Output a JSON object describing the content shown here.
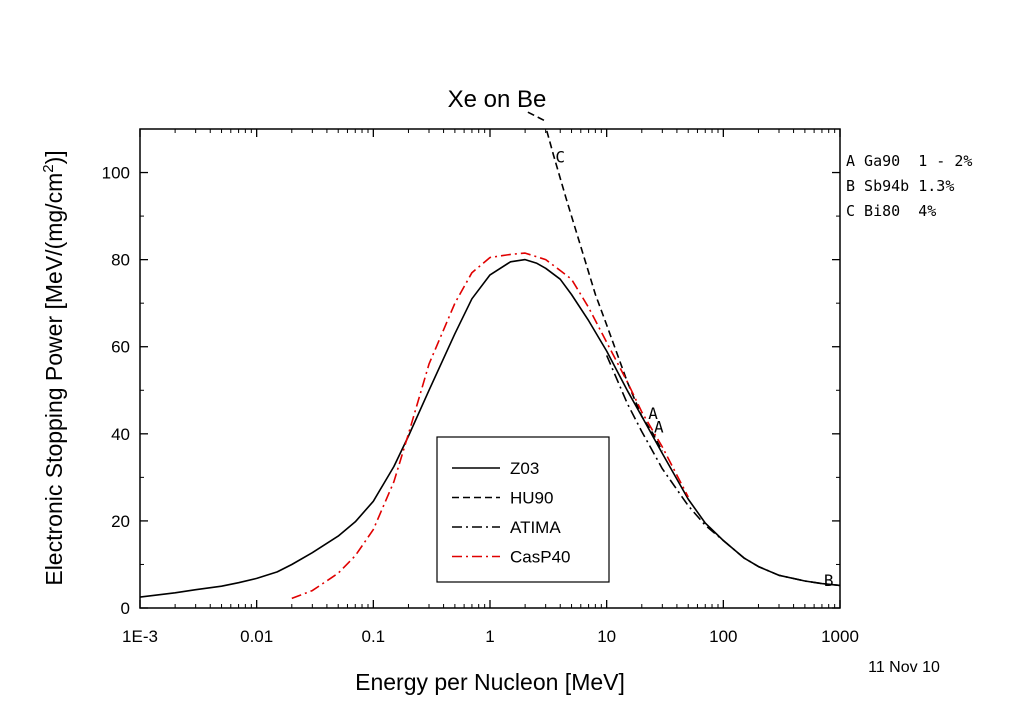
{
  "chart_data": {
    "type": "line",
    "title": "Xe on Be",
    "xlabel": "Energy per Nucleon [MeV]",
    "ylabel": "Electronic Stopping Power [MeV/(mg/cm",
    "ylabel_sup": "2",
    "ylabel_end": ")]",
    "x_scale": "log",
    "xlim": [
      0.001,
      1000
    ],
    "ylim": [
      0,
      110
    ],
    "x_ticks": [
      0.001,
      0.01,
      0.1,
      1,
      10,
      100,
      1000
    ],
    "x_tick_labels": [
      "1E-3",
      "0.01",
      "0.1",
      "1",
      "10",
      "100",
      "1000"
    ],
    "y_ticks": [
      0,
      20,
      40,
      60,
      80,
      100
    ],
    "y_tick_labels": [
      "0",
      "20",
      "40",
      "60",
      "80",
      "100"
    ],
    "grid": false,
    "legend_position": "lower-center",
    "series": [
      {
        "name": "Z03",
        "color": "#000000",
        "dash": "solid",
        "x": [
          0.001,
          0.002,
          0.003,
          0.005,
          0.007,
          0.01,
          0.015,
          0.02,
          0.03,
          0.05,
          0.07,
          0.1,
          0.15,
          0.2,
          0.3,
          0.5,
          0.7,
          1,
          1.5,
          2,
          2.5,
          3,
          4,
          5,
          7,
          10,
          15,
          20,
          30,
          50,
          70,
          100,
          150,
          200,
          300,
          500,
          700,
          1000
        ],
        "y": [
          2.5,
          3.5,
          4.2,
          5.0,
          5.8,
          6.8,
          8.3,
          10.0,
          12.7,
          16.5,
          19.8,
          24.5,
          32.5,
          39.5,
          50.0,
          63.0,
          71.0,
          76.5,
          79.5,
          80.0,
          79.2,
          78.0,
          75.5,
          72.0,
          66.0,
          59.0,
          50.0,
          44.0,
          35.5,
          25.0,
          19.5,
          15.5,
          11.5,
          9.5,
          7.5,
          6.2,
          5.6,
          5.2
        ]
      },
      {
        "name": "HU90",
        "color": "#000000",
        "dash": "dashed",
        "x": [
          2.9,
          3.5,
          4.5,
          6,
          8,
          10,
          15,
          20,
          25,
          30
        ],
        "y": [
          112,
          104,
          94,
          83,
          72,
          65,
          52,
          44,
          40,
          36
        ]
      },
      {
        "name": "ATIMA",
        "color": "#000000",
        "dash": "dashdot",
        "x": [
          10,
          15,
          20,
          30,
          50,
          70,
          100,
          150,
          200,
          300,
          500,
          700,
          1000
        ],
        "y": [
          58,
          47,
          40.5,
          32,
          23.5,
          19,
          15.5,
          11.5,
          9.5,
          7.5,
          6.2,
          5.6,
          5.2
        ]
      },
      {
        "name": "CasP40",
        "color": "#e00000",
        "dash": "dashdot",
        "x": [
          0.02,
          0.03,
          0.05,
          0.07,
          0.1,
          0.15,
          0.2,
          0.3,
          0.5,
          0.7,
          1,
          1.5,
          2,
          3,
          4,
          5,
          7,
          10,
          15,
          20,
          30,
          50
        ],
        "y": [
          2.2,
          4.0,
          8.0,
          12.0,
          18.0,
          29.0,
          40.0,
          56.0,
          70.0,
          77.0,
          80.5,
          81.2,
          81.5,
          80.0,
          77.5,
          75.5,
          69.0,
          61.0,
          52.0,
          45.0,
          37.0,
          25.5
        ]
      }
    ],
    "point_labels": [
      {
        "text": "C",
        "x": 4.0,
        "y": 103.5
      },
      {
        "text": "A",
        "x": 25,
        "y": 44.5
      },
      {
        "text": "A",
        "x": 28,
        "y": 41.5
      },
      {
        "text": "B",
        "x": 800,
        "y": 6.2
      }
    ],
    "reference_notes": [
      "A Ga90  1 - 2%",
      "B Sb94b 1.3%",
      "C Bi80  4%"
    ],
    "date_stamp": "11 Nov 10"
  }
}
